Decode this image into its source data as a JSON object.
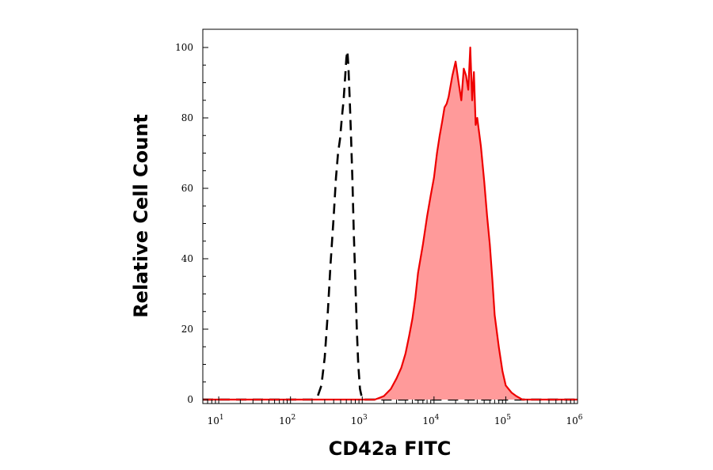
{
  "chart_data": {
    "type": "area",
    "xlabel": "CD42a FITC",
    "ylabel": "Relative Cell Count",
    "xscale": "log",
    "xlim": [
      6,
      1000000
    ],
    "ylim": [
      0,
      105
    ],
    "grid": false,
    "legend": "none",
    "x_ticks": [
      {
        "base": "10",
        "exp": "1",
        "value": 10
      },
      {
        "base": "10",
        "exp": "2",
        "value": 100
      },
      {
        "base": "10",
        "exp": "3",
        "value": 1000
      },
      {
        "base": "10",
        "exp": "4",
        "value": 10000
      },
      {
        "base": "10",
        "exp": "5",
        "value": 100000
      },
      {
        "base": "10",
        "exp": "6",
        "value": 1000000
      }
    ],
    "y_ticks": [
      "0",
      "20",
      "40",
      "60",
      "80",
      "100"
    ],
    "series": [
      {
        "style": "dashed",
        "color": "#000000",
        "fill": "none",
        "x": [
          6,
          200,
          240,
          270,
          300,
          330,
          360,
          400,
          430,
          460,
          490,
          520,
          550,
          580,
          600,
          620,
          640,
          670,
          700,
          730,
          760,
          800,
          840,
          880,
          930,
          1000,
          1100,
          1000000
        ],
        "y": [
          0,
          0,
          1,
          4,
          12,
          24,
          38,
          52,
          63,
          70,
          74,
          80,
          85,
          92,
          97,
          99,
          95,
          85,
          74,
          62,
          48,
          34,
          20,
          10,
          3,
          0,
          0,
          0
        ]
      },
      {
        "style": "solid",
        "color": "#ee0000",
        "fill": "#ff9a9a",
        "x": [
          6,
          1500,
          2000,
          2500,
          3000,
          3500,
          4000,
          4500,
          5000,
          5500,
          6000,
          7000,
          8000,
          9000,
          10000,
          11000,
          12000,
          13000,
          14000,
          15000,
          16000,
          18000,
          20000,
          22000,
          24000,
          26000,
          28000,
          30000,
          32000,
          34000,
          36000,
          38000,
          40000,
          45000,
          50000,
          55000,
          60000,
          65000,
          70000,
          80000,
          90000,
          100000,
          120000,
          140000,
          170000,
          200000,
          1000000
        ],
        "y": [
          0,
          0,
          1,
          3,
          6,
          9,
          13,
          18,
          23,
          29,
          36,
          44,
          52,
          58,
          63,
          70,
          75,
          79,
          83,
          84,
          86,
          92,
          96,
          90,
          85,
          94,
          92,
          88,
          100,
          85,
          93,
          78,
          80,
          72,
          62,
          52,
          44,
          34,
          24,
          15,
          8,
          4,
          2,
          1,
          0,
          0,
          0
        ]
      }
    ]
  }
}
